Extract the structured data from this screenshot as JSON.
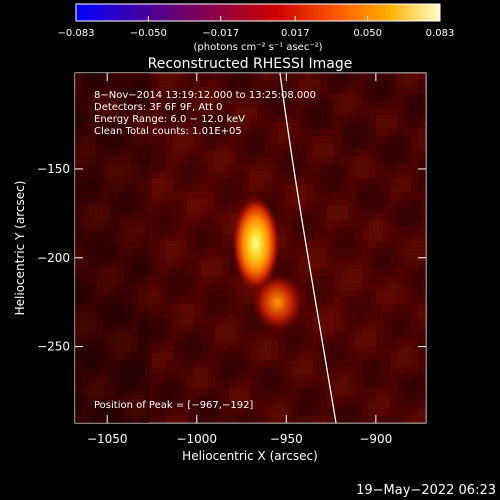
{
  "colors": {
    "background": "#000000",
    "text": "#ffffff",
    "limb": "#ffffff",
    "colorbar_start": "#0000ff",
    "colorbar_mid": "#cc0000",
    "colorbar_end": "#ffffcc"
  },
  "colorbar": {
    "ticks": [
      -0.083,
      -0.05,
      -0.017,
      0.017,
      0.05,
      0.083
    ],
    "tick_labels": [
      "−0.083",
      "−0.050",
      "−0.017",
      "0.017",
      "0.050",
      "0.083"
    ],
    "unit_text": "(photons cm⁻² s⁻¹ asec⁻²)"
  },
  "chart_data": {
    "type": "heatmap",
    "title": "Reconstructed RHESSI Image",
    "xlabel": "Heliocentric X (arcsec)",
    "ylabel": "Heliocentric Y (arcsec)",
    "xlim": [
      -1068,
      -872
    ],
    "ylim": [
      -293,
      -96
    ],
    "x_ticks": [
      -1050,
      -1000,
      -950,
      -900
    ],
    "x_tick_labels": [
      "−1050",
      "−1000",
      "−950",
      "−900"
    ],
    "y_ticks": [
      -250,
      -200,
      -150
    ],
    "y_tick_labels": [
      "−250",
      "−200",
      "−150"
    ],
    "peak_position": [
      -967,
      -192
    ],
    "info_lines": [
      "8−Nov−2014 13:19:12.000 to 13:25:08.000",
      "Detectors: 3F 6F 9F, Att 0",
      "Energy Range: 6.0 − 12.0 keV",
      "Clean    Total counts: 1.01E+05"
    ],
    "peak_text": "Position of Peak = [−967,−192]",
    "sources": [
      {
        "x": -967,
        "y": -192,
        "value": 0.083
      },
      {
        "x": -955,
        "y": -225,
        "value": 0.045
      }
    ]
  },
  "footer": {
    "timestamp": "19−May−2022 06:23"
  }
}
